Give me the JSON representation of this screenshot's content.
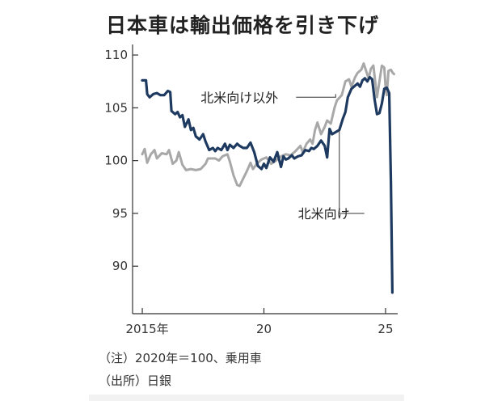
{
  "chart_data": {
    "type": "line",
    "title": "日本車は輸出価格を引き下げ",
    "y_ticks": [
      90,
      95,
      100,
      105,
      110
    ],
    "ylim": [
      85.5,
      111
    ],
    "x_ticks": [
      {
        "label": "2015年",
        "value": 2015.0
      },
      {
        "label": "20",
        "value": 2020.0
      },
      {
        "label": "25",
        "value": 2025.0
      }
    ],
    "xlim": [
      2014.6,
      2025.5
    ],
    "series": [
      {
        "name": "北米向け以外",
        "color": "#a8a8a8",
        "points": [
          [
            2015.0,
            100.6
          ],
          [
            2015.1,
            101.1
          ],
          [
            2015.2,
            99.8
          ],
          [
            2015.35,
            100.6
          ],
          [
            2015.5,
            101.0
          ],
          [
            2015.6,
            100.2
          ],
          [
            2015.8,
            100.7
          ],
          [
            2016.0,
            100.6
          ],
          [
            2016.1,
            101.0
          ],
          [
            2016.25,
            99.7
          ],
          [
            2016.4,
            100.0
          ],
          [
            2016.5,
            100.8
          ],
          [
            2016.65,
            99.6
          ],
          [
            2016.8,
            99.1
          ],
          [
            2017.0,
            99.2
          ],
          [
            2017.2,
            99.1
          ],
          [
            2017.4,
            99.2
          ],
          [
            2017.6,
            99.7
          ],
          [
            2017.7,
            100.2
          ],
          [
            2018.0,
            100.2
          ],
          [
            2018.15,
            100.0
          ],
          [
            2018.3,
            100.4
          ],
          [
            2018.5,
            100.6
          ],
          [
            2018.6,
            99.9
          ],
          [
            2018.75,
            98.6
          ],
          [
            2018.9,
            97.7
          ],
          [
            2019.0,
            97.6
          ],
          [
            2019.15,
            98.3
          ],
          [
            2019.3,
            99.0
          ],
          [
            2019.45,
            99.8
          ],
          [
            2019.55,
            99.2
          ],
          [
            2019.7,
            99.7
          ],
          [
            2019.9,
            100.1
          ],
          [
            2020.1,
            100.3
          ],
          [
            2020.3,
            99.7
          ],
          [
            2020.5,
            100.0
          ],
          [
            2020.7,
            100.4
          ],
          [
            2020.9,
            100.6
          ],
          [
            2021.1,
            100.5
          ],
          [
            2021.3,
            100.9
          ],
          [
            2021.5,
            101.4
          ],
          [
            2021.6,
            100.8
          ],
          [
            2021.75,
            101.6
          ],
          [
            2021.9,
            102.0
          ],
          [
            2022.0,
            101.6
          ],
          [
            2022.1,
            102.9
          ],
          [
            2022.2,
            103.6
          ],
          [
            2022.35,
            102.5
          ],
          [
            2022.5,
            103.2
          ],
          [
            2022.6,
            103.8
          ],
          [
            2022.75,
            103.5
          ],
          [
            2022.9,
            105.0
          ],
          [
            2023.0,
            105.7
          ],
          [
            2023.2,
            106.2
          ],
          [
            2023.35,
            107.5
          ],
          [
            2023.5,
            107.7
          ],
          [
            2023.6,
            107.0
          ],
          [
            2023.75,
            107.9
          ],
          [
            2023.85,
            108.3
          ],
          [
            2024.0,
            108.6
          ],
          [
            2024.1,
            109.2
          ],
          [
            2024.2,
            108.5
          ],
          [
            2024.3,
            107.8
          ],
          [
            2024.4,
            108.7
          ],
          [
            2024.5,
            109.0
          ],
          [
            2024.55,
            108.0
          ],
          [
            2024.65,
            106.0
          ],
          [
            2024.75,
            107.5
          ],
          [
            2024.85,
            109.0
          ],
          [
            2024.95,
            108.8
          ],
          [
            2025.0,
            107.0
          ],
          [
            2025.05,
            106.2
          ],
          [
            2025.12,
            108.5
          ],
          [
            2025.22,
            108.6
          ],
          [
            2025.3,
            108.3
          ],
          [
            2025.35,
            108.2
          ]
        ]
      },
      {
        "name": "北米向け",
        "color": "#1e3a60",
        "points": [
          [
            2015.0,
            107.6
          ],
          [
            2015.15,
            107.6
          ],
          [
            2015.2,
            106.3
          ],
          [
            2015.3,
            106.0
          ],
          [
            2015.45,
            106.3
          ],
          [
            2015.6,
            106.4
          ],
          [
            2015.75,
            106.2
          ],
          [
            2015.9,
            106.2
          ],
          [
            2016.05,
            106.6
          ],
          [
            2016.15,
            106.5
          ],
          [
            2016.2,
            104.7
          ],
          [
            2016.35,
            104.4
          ],
          [
            2016.45,
            104.6
          ],
          [
            2016.55,
            104.1
          ],
          [
            2016.65,
            104.3
          ],
          [
            2016.75,
            103.2
          ],
          [
            2016.9,
            103.9
          ],
          [
            2017.0,
            102.9
          ],
          [
            2017.1,
            103.1
          ],
          [
            2017.2,
            102.3
          ],
          [
            2017.35,
            102.0
          ],
          [
            2017.5,
            102.5
          ],
          [
            2017.6,
            101.8
          ],
          [
            2017.75,
            101.0
          ],
          [
            2017.9,
            101.2
          ],
          [
            2018.0,
            100.9
          ],
          [
            2018.1,
            101.2
          ],
          [
            2018.25,
            101.0
          ],
          [
            2018.4,
            101.6
          ],
          [
            2018.5,
            101.0
          ],
          [
            2018.6,
            101.5
          ],
          [
            2018.75,
            101.2
          ],
          [
            2018.9,
            101.6
          ],
          [
            2019.0,
            101.4
          ],
          [
            2019.15,
            101.2
          ],
          [
            2019.3,
            101.2
          ],
          [
            2019.45,
            101.7
          ],
          [
            2019.6,
            100.8
          ],
          [
            2019.75,
            99.5
          ],
          [
            2019.9,
            99.2
          ],
          [
            2020.0,
            99.7
          ],
          [
            2020.1,
            99.3
          ],
          [
            2020.25,
            100.3
          ],
          [
            2020.4,
            99.9
          ],
          [
            2020.55,
            100.8
          ],
          [
            2020.7,
            99.4
          ],
          [
            2020.8,
            100.4
          ],
          [
            2020.9,
            100.1
          ],
          [
            2021.0,
            100.2
          ],
          [
            2021.15,
            100.5
          ],
          [
            2021.25,
            100.2
          ],
          [
            2021.4,
            100.4
          ],
          [
            2021.55,
            100.5
          ],
          [
            2021.7,
            101.0
          ],
          [
            2021.85,
            100.9
          ],
          [
            2021.95,
            101.2
          ],
          [
            2022.05,
            101.1
          ],
          [
            2022.2,
            101.4
          ],
          [
            2022.35,
            101.9
          ],
          [
            2022.5,
            101.4
          ],
          [
            2022.6,
            100.3
          ],
          [
            2022.7,
            103.0
          ],
          [
            2022.8,
            102.5
          ],
          [
            2022.95,
            102.7
          ],
          [
            2023.1,
            102.9
          ],
          [
            2023.25,
            104.0
          ],
          [
            2023.35,
            104.6
          ],
          [
            2023.45,
            106.0
          ],
          [
            2023.6,
            106.8
          ],
          [
            2023.75,
            107.1
          ],
          [
            2023.85,
            107.3
          ],
          [
            2023.95,
            107.0
          ],
          [
            2024.05,
            107.6
          ],
          [
            2024.15,
            107.8
          ],
          [
            2024.25,
            107.5
          ],
          [
            2024.35,
            107.9
          ],
          [
            2024.45,
            107.7
          ],
          [
            2024.55,
            105.8
          ],
          [
            2024.65,
            104.4
          ],
          [
            2024.75,
            104.5
          ],
          [
            2024.85,
            105.4
          ],
          [
            2024.95,
            106.8
          ],
          [
            2025.05,
            106.9
          ],
          [
            2025.15,
            106.4
          ],
          [
            2025.22,
            98.0
          ],
          [
            2025.28,
            87.5
          ]
        ]
      }
    ],
    "annotations": [
      {
        "text": "北米向け以外",
        "series": "北米向け以外",
        "label_at": [
          2017.4,
          106.0
        ],
        "point": [
          2022.95,
          106.3
        ]
      },
      {
        "text": "北米向け",
        "series": "北米向け",
        "label_at": [
          2021.4,
          95.0
        ],
        "point": [
          2023.1,
          102.9
        ]
      }
    ]
  },
  "footer": {
    "note": "（注）2020年＝100、乗用車",
    "source": "（出所）日銀"
  }
}
